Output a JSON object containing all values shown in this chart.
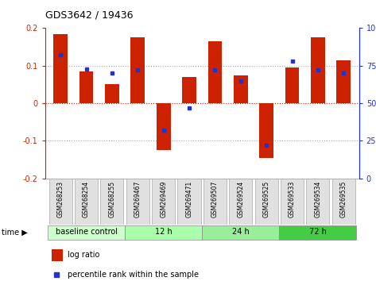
{
  "title": "GDS3642 / 19436",
  "samples": [
    "GSM268253",
    "GSM268254",
    "GSM268255",
    "GSM269467",
    "GSM269469",
    "GSM269471",
    "GSM269507",
    "GSM269524",
    "GSM269525",
    "GSM269533",
    "GSM269534",
    "GSM269535"
  ],
  "log_ratio": [
    0.185,
    0.085,
    0.05,
    0.175,
    -0.125,
    0.07,
    0.165,
    0.075,
    -0.145,
    0.095,
    0.175,
    0.115
  ],
  "percentile_rank": [
    82,
    73,
    70,
    72,
    32,
    47,
    72,
    65,
    22,
    78,
    72,
    70
  ],
  "groups": [
    {
      "label": "baseline control",
      "start": 0,
      "end": 3
    },
    {
      "label": "12 h",
      "start": 3,
      "end": 6
    },
    {
      "label": "24 h",
      "start": 6,
      "end": 9
    },
    {
      "label": "72 h",
      "start": 9,
      "end": 12
    }
  ],
  "group_colors": [
    "#ccffcc",
    "#aaffaa",
    "#99ee99",
    "#44cc44"
  ],
  "ylim_left": [
    -0.2,
    0.2
  ],
  "ylim_right": [
    0,
    100
  ],
  "bar_color": "#cc2200",
  "square_color": "#2233cc",
  "bg_color": "#ffffff"
}
